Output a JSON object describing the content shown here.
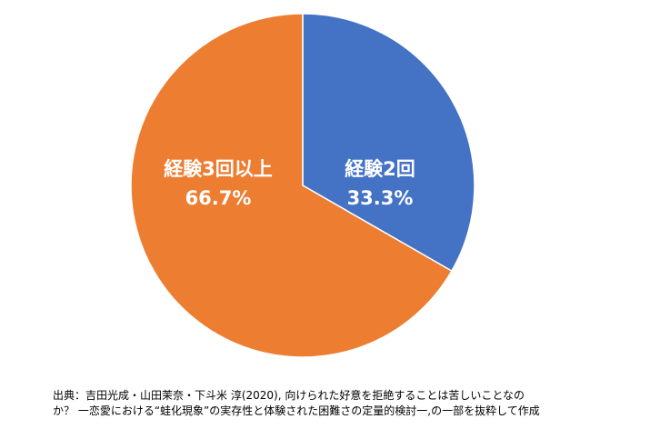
{
  "chart_data": {
    "type": "pie",
    "categories": [
      "経験2回",
      "経験3回以上"
    ],
    "values": [
      33.3,
      66.7
    ],
    "value_labels": [
      "33.3%",
      "66.7%"
    ],
    "colors": [
      "#4472c4",
      "#ed7d31"
    ],
    "start_angle": "12 o'clock",
    "direction": "clockwise",
    "legend": "none"
  },
  "source": {
    "line1": "出典：吉田光成・山田茉奈・下斗米 淳(2020), 向けられた好意を拒絶することは苦しいことなの",
    "line2": "か？ 一恋愛における“蛙化現象”の実存性と体験された困難さの定量的検討一,の一部を抜粋して作成"
  }
}
